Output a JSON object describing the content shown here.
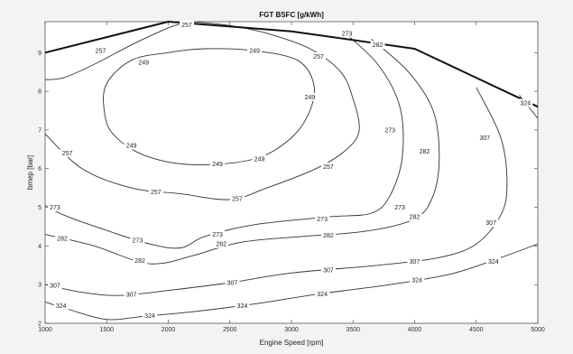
{
  "chart_data": {
    "type": "contour",
    "title": "FGT BSFC [g/kWh]",
    "xlabel": "Engine Speed [rpm]",
    "ylabel": "bmep [bar]",
    "xlim": [
      1000,
      5000
    ],
    "ylim": [
      2,
      9.8
    ],
    "xticks": [
      1000,
      1500,
      2000,
      2500,
      3000,
      3500,
      4000,
      4500,
      5000
    ],
    "yticks": [
      2,
      3,
      4,
      5,
      6,
      7,
      8,
      9
    ],
    "grid": false,
    "colors": {
      "figure_bg": "#f3f3f3",
      "axes_bg": "#ffffff",
      "contour": "#333333",
      "boundary": "#111111"
    },
    "boundary": {
      "x": [
        1000,
        2000,
        3000,
        4000,
        5000
      ],
      "y": [
        9.0,
        9.8,
        9.55,
        9.1,
        7.6
      ]
    },
    "contours": [
      {
        "level": 249,
        "closed": true,
        "x": [
          2000,
          1700,
          1500,
          1480,
          1550,
          1800,
          2200,
          2700,
          3000,
          3150,
          3180,
          3050,
          2700,
          2300
        ],
        "y": [
          9.0,
          8.8,
          8.2,
          7.5,
          6.9,
          6.35,
          6.1,
          6.25,
          6.8,
          7.5,
          8.2,
          8.8,
          9.05,
          9.1
        ],
        "labels": [
          {
            "x": 1800,
            "y": 8.75
          },
          {
            "x": 2700,
            "y": 9.05
          },
          {
            "x": 3150,
            "y": 7.85
          },
          {
            "x": 1700,
            "y": 6.6
          },
          {
            "x": 2400,
            "y": 6.12
          },
          {
            "x": 2740,
            "y": 6.25
          }
        ]
      },
      {
        "level": 257,
        "x": [
          1000,
          1150,
          1400,
          1700,
          1900,
          2050,
          2200
        ],
        "y": [
          8.3,
          8.35,
          8.7,
          9.2,
          9.5,
          9.7,
          9.8
        ],
        "labels": [
          {
            "x": 1450,
            "y": 9.05
          }
        ]
      },
      {
        "level": 257,
        "x": [
          2200,
          2500,
          2800,
          3150,
          3400,
          3500,
          3550,
          3450,
          3200,
          2800,
          2500,
          2100,
          1700,
          1300,
          1000
        ],
        "y": [
          9.8,
          9.7,
          9.5,
          9.1,
          8.5,
          7.8,
          7.0,
          6.5,
          6.0,
          5.5,
          5.2,
          5.35,
          5.5,
          6.0,
          6.9
        ],
        "labels": [
          {
            "x": 2150,
            "y": 9.72
          },
          {
            "x": 3220,
            "y": 8.9
          },
          {
            "x": 3300,
            "y": 6.05
          },
          {
            "x": 2560,
            "y": 5.22
          },
          {
            "x": 1900,
            "y": 5.4
          },
          {
            "x": 1180,
            "y": 6.4
          }
        ]
      },
      {
        "level": 273,
        "x": [
          3400,
          3700,
          3880,
          3900,
          3800,
          3650,
          3300,
          2700,
          2300,
          2100,
          1850,
          1500,
          1150,
          1000
        ],
        "y": [
          9.6,
          8.7,
          7.6,
          6.3,
          5.3,
          4.85,
          4.75,
          4.55,
          4.25,
          3.95,
          4.05,
          4.4,
          4.8,
          5.05
        ],
        "labels": [
          {
            "x": 3450,
            "y": 9.5
          },
          {
            "x": 3800,
            "y": 7.0
          },
          {
            "x": 3880,
            "y": 5.0
          },
          {
            "x": 3250,
            "y": 4.7
          },
          {
            "x": 2400,
            "y": 4.3
          },
          {
            "x": 1750,
            "y": 4.15
          },
          {
            "x": 1080,
            "y": 5.0
          }
        ]
      },
      {
        "level": 282,
        "x": [
          3650,
          3950,
          4150,
          4200,
          4150,
          4000,
          3600,
          3100,
          2600,
          2200,
          1950,
          1750,
          1400,
          1000
        ],
        "y": [
          9.35,
          8.5,
          7.5,
          6.3,
          5.3,
          4.7,
          4.38,
          4.25,
          4.1,
          3.75,
          3.55,
          3.6,
          4.0,
          4.3
        ],
        "labels": [
          {
            "x": 3700,
            "y": 9.2
          },
          {
            "x": 4080,
            "y": 6.45
          },
          {
            "x": 4000,
            "y": 4.75
          },
          {
            "x": 3300,
            "y": 4.28
          },
          {
            "x": 2430,
            "y": 4.05
          },
          {
            "x": 1770,
            "y": 3.62
          },
          {
            "x": 1140,
            "y": 4.2
          }
        ]
      },
      {
        "level": 307,
        "x": [
          4500,
          4700,
          4750,
          4700,
          4500,
          4200,
          3700,
          3000,
          2500,
          2000,
          1600,
          1300,
          1000
        ],
        "y": [
          8.1,
          6.8,
          5.6,
          4.8,
          4.05,
          3.7,
          3.5,
          3.3,
          3.05,
          2.85,
          2.72,
          2.8,
          3.0
        ],
        "labels": [
          {
            "x": 4570,
            "y": 6.8
          },
          {
            "x": 4620,
            "y": 4.6
          },
          {
            "x": 4000,
            "y": 3.6
          },
          {
            "x": 3300,
            "y": 3.38
          },
          {
            "x": 2520,
            "y": 3.05
          },
          {
            "x": 1700,
            "y": 2.75
          },
          {
            "x": 1080,
            "y": 2.98
          }
        ]
      },
      {
        "level": 324,
        "x": [
          1000,
          1200,
          1500,
          1800,
          2200,
          2700,
          3200,
          3800,
          4300,
          4700,
          5000
        ],
        "y": [
          2.55,
          2.35,
          2.1,
          2.18,
          2.3,
          2.5,
          2.75,
          3.0,
          3.28,
          3.7,
          4.05
        ],
        "labels": [
          {
            "x": 1130,
            "y": 2.45
          },
          {
            "x": 1850,
            "y": 2.2
          },
          {
            "x": 2600,
            "y": 2.45
          },
          {
            "x": 3250,
            "y": 2.76
          },
          {
            "x": 4020,
            "y": 3.12
          },
          {
            "x": 4640,
            "y": 3.6
          }
        ]
      },
      {
        "level": 324,
        "x": [
          4850,
          5000
        ],
        "y": [
          7.9,
          7.3
        ],
        "labels": [
          {
            "x": 4900,
            "y": 7.7
          }
        ]
      }
    ]
  }
}
